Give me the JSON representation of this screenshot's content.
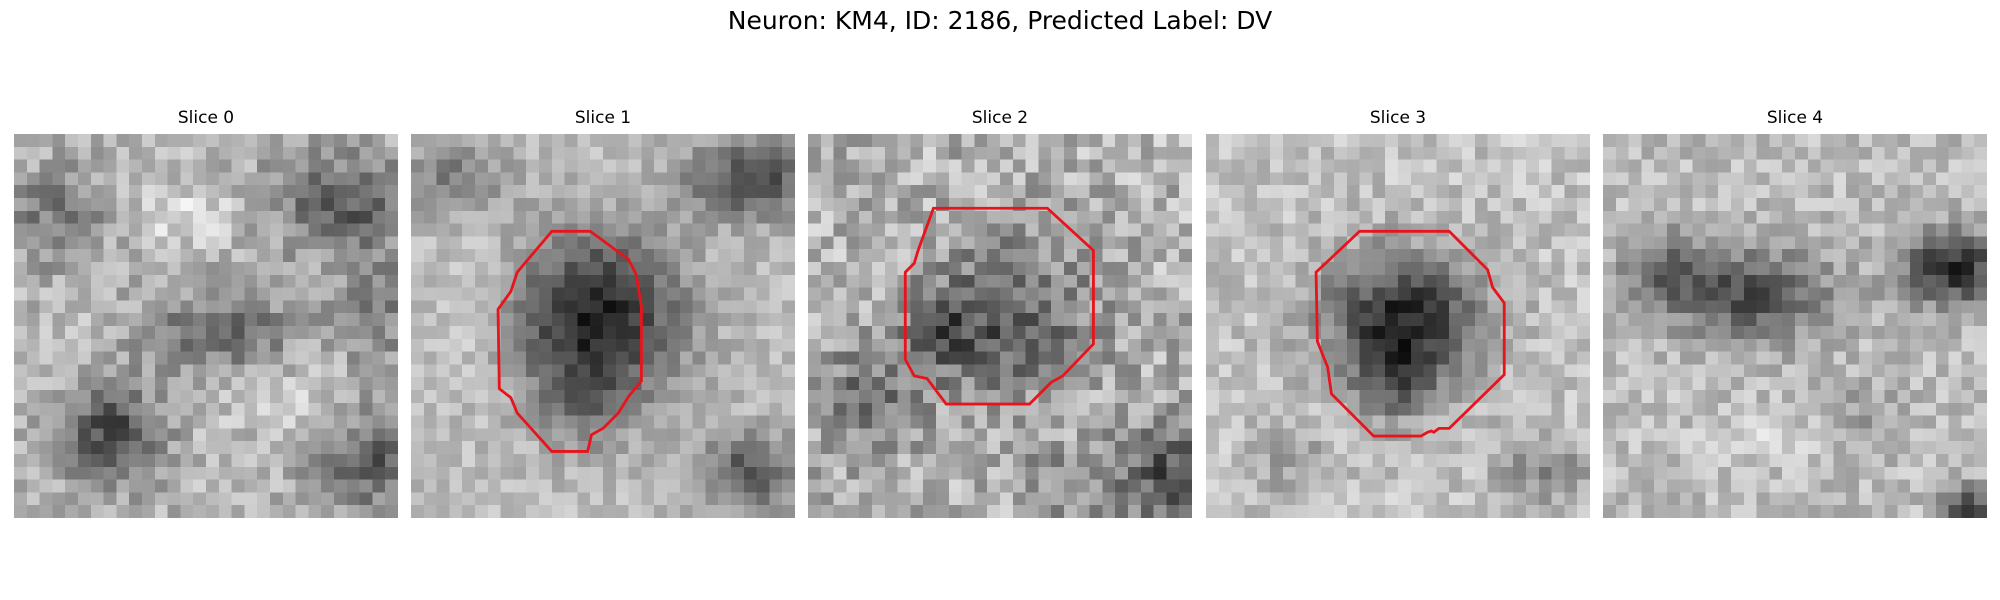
{
  "figure": {
    "title": "Neuron: KM4, ID: 2186, Predicted Label: DV",
    "contour_color": "#e8141b"
  },
  "panels": [
    {
      "title": "Slice 0",
      "has_contour": false
    },
    {
      "title": "Slice 1",
      "has_contour": true
    },
    {
      "title": "Slice 2",
      "has_contour": true
    },
    {
      "title": "Slice 3",
      "has_contour": true
    },
    {
      "title": "Slice 4",
      "has_contour": false
    }
  ]
}
